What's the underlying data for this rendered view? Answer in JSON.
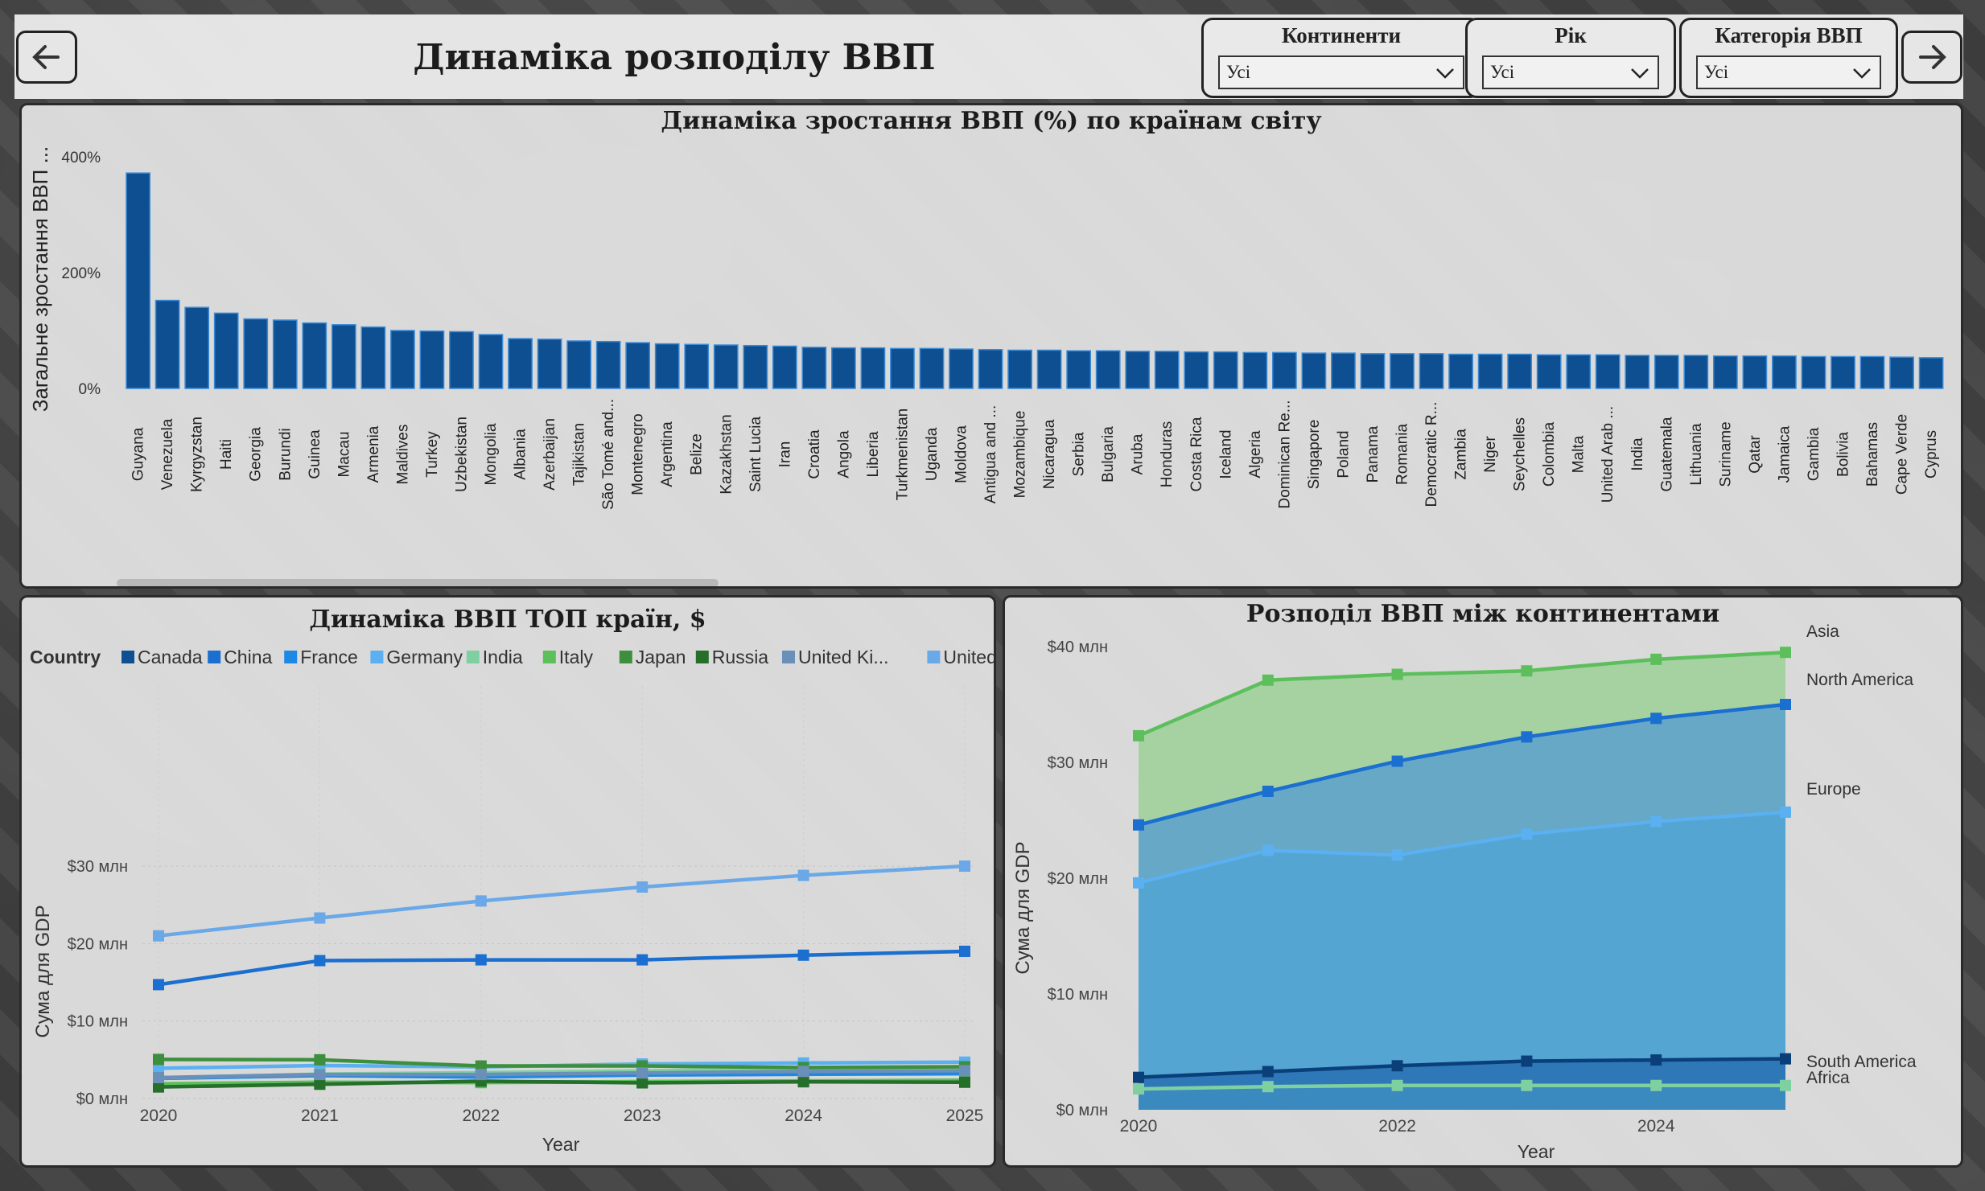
{
  "header": {
    "title": "Динаміка розподілу ВВП",
    "back_icon": "arrow-left-icon",
    "forward_icon": "arrow-right-icon"
  },
  "filters": [
    {
      "label": "Континенти",
      "value": "Усі"
    },
    {
      "label": "Рік",
      "value": "Усі"
    },
    {
      "label": "Категорія ВВП",
      "value": "Усі"
    }
  ],
  "colors": {
    "bar": "#0d4f91",
    "asia": "#5cbf5c",
    "north_america": "#1a6fd0",
    "europe": "#5ab0f0",
    "south_america": "#0a3f7a",
    "africa": "#7fd0a0"
  },
  "chart_data": [
    {
      "type": "bar",
      "title": "Динаміка зростання ВВП (%) по країнам світу",
      "ylabel": "Загальне зростання ВВП ...",
      "yticks": [
        "0%",
        "200%",
        "400%"
      ],
      "ylim": [
        0,
        400
      ],
      "categories": [
        "Guyana",
        "Venezuela",
        "Kyrgyzstan",
        "Haiti",
        "Georgia",
        "Burundi",
        "Guinea",
        "Macau",
        "Armenia",
        "Maldives",
        "Turkey",
        "Uzbekistan",
        "Mongolia",
        "Albania",
        "Azerbaijan",
        "Tajikistan",
        "São Tomé and...",
        "Montenegro",
        "Argentina",
        "Belize",
        "Kazakhstan",
        "Saint Lucia",
        "Iran",
        "Croatia",
        "Angola",
        "Liberia",
        "Turkmenistan",
        "Uganda",
        "Moldova",
        "Antigua and ...",
        "Mozambique",
        "Nicaragua",
        "Serbia",
        "Bulgaria",
        "Aruba",
        "Honduras",
        "Costa Rica",
        "Iceland",
        "Algeria",
        "Dominican Re...",
        "Singapore",
        "Poland",
        "Panama",
        "Romania",
        "Democratic R...",
        "Zambia",
        "Niger",
        "Seychelles",
        "Colombia",
        "Malta",
        "United Arab ...",
        "India",
        "Guatemala",
        "Lithuania",
        "Suriname",
        "Qatar",
        "Jamaica",
        "Gambia",
        "Bolivia",
        "Bahamas",
        "Cape Verde",
        "Cyprus"
      ],
      "values": [
        372,
        152,
        140,
        130,
        120,
        118,
        113,
        110,
        106,
        100,
        99,
        98,
        93,
        86,
        85,
        82,
        81,
        79,
        77,
        76,
        75,
        74,
        73,
        71,
        70,
        70,
        69,
        69,
        68,
        67,
        66,
        66,
        65,
        65,
        64,
        64,
        63,
        63,
        62,
        62,
        61,
        61,
        60,
        60,
        60,
        59,
        59,
        59,
        58,
        58,
        58,
        57,
        57,
        57,
        56,
        56,
        56,
        55,
        55,
        55,
        54,
        53
      ]
    },
    {
      "type": "line",
      "title": "Динаміка ВВП ТОП країн, $",
      "legend_title": "Country",
      "xlabel": "Year",
      "ylabel": "Сума для GDP",
      "yticks": [
        "$0 млн",
        "$10 млн",
        "$20 млн",
        "$30 млн"
      ],
      "ylim": [
        0,
        30
      ],
      "x": [
        2020,
        2021,
        2022,
        2023,
        2024,
        2025
      ],
      "series": [
        {
          "name": "Canada",
          "color": "#0d4f91",
          "values": [
            1.65,
            2.0,
            2.14,
            2.12,
            2.24,
            2.33
          ]
        },
        {
          "name": "China",
          "color": "#1a6fd0",
          "values": [
            14.7,
            17.8,
            17.9,
            17.9,
            18.5,
            19.0
          ]
        },
        {
          "name": "France",
          "color": "#1e88e5",
          "values": [
            2.6,
            2.96,
            2.78,
            3.03,
            3.13,
            3.2
          ]
        },
        {
          "name": "Germany",
          "color": "#5ab0f0",
          "values": [
            3.9,
            4.26,
            4.08,
            4.46,
            4.59,
            4.7
          ]
        },
        {
          "name": "India",
          "color": "#7fd0a0",
          "values": [
            2.67,
            3.15,
            3.35,
            3.57,
            3.89,
            4.1
          ]
        },
        {
          "name": "Italy",
          "color": "#5cbf5c",
          "values": [
            1.9,
            2.1,
            2.05,
            2.19,
            2.28,
            2.35
          ]
        },
        {
          "name": "Japan",
          "color": "#3d8f3d",
          "values": [
            5.05,
            5.0,
            4.2,
            4.2,
            4.0,
            4.1
          ]
        },
        {
          "name": "Russia",
          "color": "#256f2a",
          "values": [
            1.49,
            1.84,
            2.24,
            2.02,
            2.16,
            2.1
          ]
        },
        {
          "name": "United Ki...",
          "color": "#6a8fb8",
          "values": [
            2.7,
            3.1,
            3.1,
            3.3,
            3.5,
            3.6
          ]
        },
        {
          "name": "United St...",
          "color": "#6aa8e8",
          "values": [
            21.0,
            23.3,
            25.5,
            27.3,
            28.8,
            30.0
          ]
        }
      ]
    },
    {
      "type": "area",
      "title": "Розподіл ВВП між континентами",
      "xlabel": "Year",
      "ylabel": "Сума для GDP",
      "yticks": [
        "$0 млн",
        "$10 млн",
        "$20 млн",
        "$30 млн",
        "$40 млн"
      ],
      "ylim": [
        0,
        40
      ],
      "x": [
        2020,
        2021,
        2022,
        2023,
        2024,
        2025
      ],
      "series": [
        {
          "name": "Asia",
          "color": "#5cbf5c",
          "values": [
            32.3,
            37.1,
            37.6,
            37.9,
            38.9,
            39.5
          ]
        },
        {
          "name": "North America",
          "color": "#1a6fd0",
          "values": [
            24.6,
            27.5,
            30.1,
            32.2,
            33.8,
            35.0
          ]
        },
        {
          "name": "Europe",
          "color": "#5ab0f0",
          "values": [
            19.6,
            22.4,
            22.0,
            23.8,
            24.9,
            25.7
          ]
        },
        {
          "name": "South America",
          "color": "#0a3f7a",
          "values": [
            2.8,
            3.3,
            3.8,
            4.2,
            4.3,
            4.4
          ]
        },
        {
          "name": "Africa",
          "color": "#7fd0a0",
          "values": [
            1.8,
            2.0,
            2.1,
            2.1,
            2.1,
            2.1
          ]
        }
      ]
    }
  ]
}
